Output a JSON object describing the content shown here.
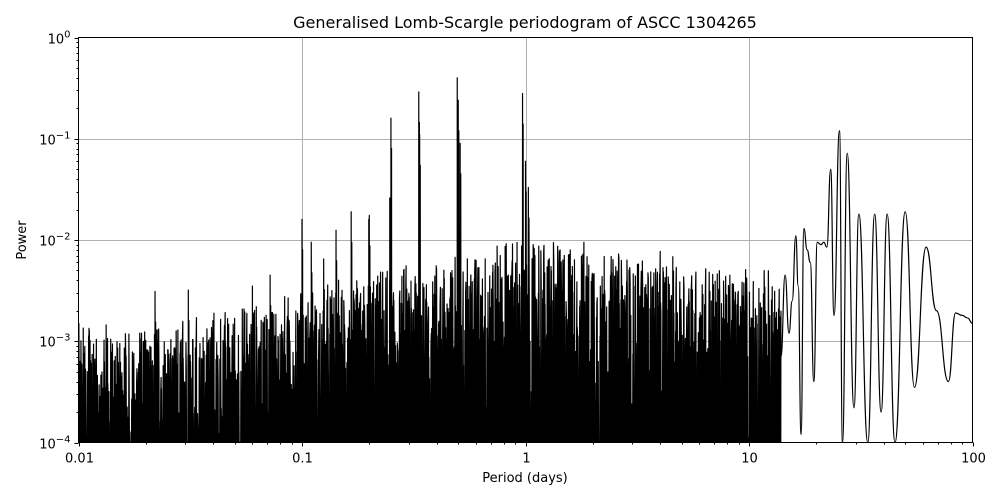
{
  "chart_data": {
    "type": "line",
    "title": "Generalised Lomb-Scargle periodogram of ASCC 1304265",
    "xlabel": "Period (days)",
    "ylabel": "Power",
    "xscale": "log",
    "yscale": "log",
    "xlim": [
      0.01,
      100
    ],
    "ylim": [
      0.0001,
      1
    ],
    "grid": true,
    "x_ticks": [
      {
        "value": 0.01,
        "label": "0.01"
      },
      {
        "value": 0.1,
        "label": "0.1"
      },
      {
        "value": 1,
        "label": "1"
      },
      {
        "value": 10,
        "label": "10"
      },
      {
        "value": 100,
        "label": "100"
      }
    ],
    "y_ticks": [
      {
        "value": 0.0001,
        "base": "10",
        "exp": "−4"
      },
      {
        "value": 0.001,
        "base": "10",
        "exp": "−3"
      },
      {
        "value": 0.01,
        "base": "10",
        "exp": "−2"
      },
      {
        "value": 0.1,
        "base": "10",
        "exp": "−1"
      },
      {
        "value": 1,
        "base": "10",
        "exp": "0"
      }
    ],
    "line_color": "#000000",
    "grid_color": "#b0b0b0",
    "peaks": [
      {
        "period": 0.0105,
        "power": 0.00135
      },
      {
        "period": 0.022,
        "power": 0.0031
      },
      {
        "period": 0.031,
        "power": 0.0032
      },
      {
        "period": 0.06,
        "power": 0.0035
      },
      {
        "period": 0.072,
        "power": 0.0045
      },
      {
        "period": 0.1,
        "power": 0.016
      },
      {
        "period": 0.11,
        "power": 0.0095
      },
      {
        "period": 0.125,
        "power": 0.0065
      },
      {
        "period": 0.142,
        "power": 0.0125
      },
      {
        "period": 0.166,
        "power": 0.019
      },
      {
        "period": 0.199,
        "power": 0.016
      },
      {
        "period": 0.2,
        "power": 0.0175
      },
      {
        "period": 0.25,
        "power": 0.16
      },
      {
        "period": 0.247,
        "power": 0.026
      },
      {
        "period": 0.333,
        "power": 0.29
      },
      {
        "period": 0.336,
        "power": 0.11
      },
      {
        "period": 0.495,
        "power": 0.4
      },
      {
        "period": 0.5,
        "power": 0.24
      },
      {
        "period": 0.51,
        "power": 0.09
      },
      {
        "period": 0.97,
        "power": 0.28
      },
      {
        "period": 1.0,
        "power": 0.06
      },
      {
        "period": 1.03,
        "power": 0.033
      }
    ],
    "long_period_curve": [
      [
        13.9,
        0.0007
      ],
      [
        14.5,
        0.0045
      ],
      [
        15.1,
        0.0012
      ],
      [
        15.6,
        0.0025
      ],
      [
        16.2,
        0.011
      ],
      [
        16.6,
        0.0035
      ],
      [
        17.1,
        0.00012
      ],
      [
        17.6,
        0.013
      ],
      [
        18.2,
        0.008
      ],
      [
        18.8,
        0.006
      ],
      [
        19.5,
        0.0004
      ],
      [
        20.2,
        0.0095
      ],
      [
        21.0,
        0.009
      ],
      [
        21.6,
        0.0095
      ],
      [
        22.3,
        0.0085
      ],
      [
        23.2,
        0.05
      ],
      [
        24.0,
        0.0018
      ],
      [
        25.4,
        0.12
      ],
      [
        26.2,
        0.0001
      ],
      [
        27.5,
        0.072
      ],
      [
        29.5,
        0.00022
      ],
      [
        31.0,
        0.018
      ],
      [
        34.0,
        0.0001
      ],
      [
        36.5,
        0.018
      ],
      [
        39.0,
        0.0002
      ],
      [
        41.5,
        0.018
      ],
      [
        45.0,
        0.0001
      ],
      [
        50.0,
        0.019
      ],
      [
        55.0,
        0.00035
      ],
      [
        62.0,
        0.0085
      ],
      [
        69.0,
        0.002
      ],
      [
        78.0,
        0.0004
      ],
      [
        84.0,
        0.0019
      ],
      [
        90.0,
        0.0018
      ],
      [
        95.0,
        0.0017
      ],
      [
        100.0,
        0.0015
      ]
    ]
  }
}
